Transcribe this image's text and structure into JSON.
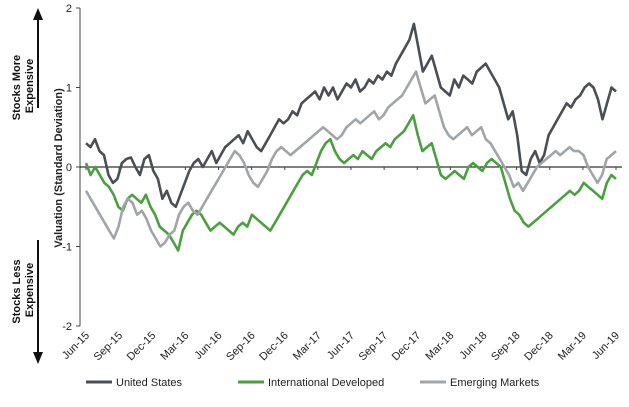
{
  "chart_data": {
    "type": "line",
    "title": "",
    "ylabel": "Valuation (Standard Deviation)",
    "xlabel": "",
    "ylim": [
      -2,
      2
    ],
    "yticks": [
      -2,
      -1,
      0,
      1,
      2
    ],
    "x_tick_labels": [
      "Jun-15",
      "Sep-15",
      "Dec-15",
      "Mar-16",
      "Jun-16",
      "Sep-16",
      "Dec-16",
      "Mar-17",
      "Jun-17",
      "Sep-17",
      "Dec-17",
      "Mar-18",
      "Jun-18",
      "Sep-18",
      "Dec-18",
      "Mar-19",
      "Jun-19"
    ],
    "grid": false,
    "legend": "bottom",
    "side_labels": {
      "top": "Stocks More Expensive",
      "bottom": "Stocks Less Expensive"
    },
    "series": [
      {
        "name": "United States",
        "color": "#4a4f55",
        "values": [
          0.3,
          0.25,
          0.35,
          0.2,
          0.15,
          -0.1,
          -0.2,
          -0.15,
          0.05,
          0.1,
          0.12,
          0.0,
          -0.1,
          0.1,
          0.15,
          -0.05,
          -0.15,
          -0.4,
          -0.3,
          -0.45,
          -0.5,
          -0.35,
          -0.2,
          -0.05,
          0.05,
          0.1,
          0.0,
          0.1,
          0.2,
          0.05,
          0.15,
          0.25,
          0.3,
          0.35,
          0.4,
          0.3,
          0.45,
          0.35,
          0.25,
          0.2,
          0.3,
          0.4,
          0.5,
          0.6,
          0.55,
          0.6,
          0.7,
          0.65,
          0.8,
          0.85,
          0.9,
          0.95,
          0.85,
          1.0,
          0.9,
          1.0,
          0.85,
          0.95,
          1.05,
          1.0,
          1.1,
          0.95,
          1.0,
          1.1,
          1.05,
          1.15,
          1.1,
          1.2,
          1.15,
          1.3,
          1.4,
          1.5,
          1.6,
          1.8,
          1.5,
          1.2,
          1.3,
          1.4,
          1.2,
          1.0,
          0.95,
          0.9,
          1.1,
          1.0,
          1.15,
          1.1,
          1.05,
          1.2,
          1.25,
          1.3,
          1.2,
          1.1,
          1.0,
          0.8,
          0.6,
          0.7,
          0.4,
          -0.05,
          -0.1,
          0.1,
          0.2,
          0.05,
          0.15,
          0.4,
          0.5,
          0.6,
          0.7,
          0.8,
          0.75,
          0.85,
          0.9,
          1.0,
          1.05,
          1.0,
          0.85,
          0.6,
          0.8,
          1.0,
          0.95
        ],
        "values_note": "weekly approx from Jun-15 to Jun-19"
      },
      {
        "name": "International Developed",
        "color": "#4aa03f",
        "values": [
          0.05,
          -0.1,
          0.0,
          -0.1,
          -0.2,
          -0.25,
          -0.35,
          -0.5,
          -0.55,
          -0.4,
          -0.35,
          -0.4,
          -0.45,
          -0.35,
          -0.5,
          -0.6,
          -0.75,
          -0.8,
          -0.85,
          -0.95,
          -1.05,
          -0.8,
          -0.7,
          -0.6,
          -0.55,
          -0.6,
          -0.7,
          -0.8,
          -0.75,
          -0.7,
          -0.75,
          -0.8,
          -0.85,
          -0.75,
          -0.7,
          -0.75,
          -0.6,
          -0.65,
          -0.7,
          -0.75,
          -0.8,
          -0.7,
          -0.6,
          -0.5,
          -0.4,
          -0.3,
          -0.2,
          -0.1,
          -0.05,
          -0.1,
          0.05,
          0.2,
          0.3,
          0.35,
          0.2,
          0.1,
          0.05,
          0.1,
          0.15,
          0.1,
          0.2,
          0.15,
          0.1,
          0.2,
          0.25,
          0.3,
          0.25,
          0.35,
          0.4,
          0.45,
          0.55,
          0.65,
          0.4,
          0.2,
          0.25,
          0.3,
          0.1,
          -0.1,
          -0.15,
          -0.1,
          -0.05,
          -0.1,
          -0.15,
          0.0,
          0.05,
          0.0,
          -0.05,
          0.05,
          0.1,
          0.05,
          0.0,
          -0.2,
          -0.4,
          -0.55,
          -0.6,
          -0.7,
          -0.75,
          -0.7,
          -0.65,
          -0.6,
          -0.55,
          -0.5,
          -0.45,
          -0.4,
          -0.35,
          -0.3,
          -0.35,
          -0.3,
          -0.2,
          -0.25,
          -0.3,
          -0.35,
          -0.4,
          -0.2,
          -0.1,
          -0.15
        ],
        "values_note": "weekly approx from Jun-15 to Jun-19"
      },
      {
        "name": "Emerging Markets",
        "color": "#a0a5aa",
        "values": [
          -0.3,
          -0.4,
          -0.5,
          -0.6,
          -0.7,
          -0.8,
          -0.9,
          -0.75,
          -0.5,
          -0.4,
          -0.45,
          -0.6,
          -0.55,
          -0.65,
          -0.8,
          -0.9,
          -1.0,
          -0.95,
          -0.85,
          -0.8,
          -0.6,
          -0.5,
          -0.45,
          -0.55,
          -0.6,
          -0.5,
          -0.4,
          -0.3,
          -0.2,
          -0.1,
          0.0,
          0.1,
          0.2,
          0.15,
          0.05,
          -0.1,
          -0.2,
          -0.25,
          -0.15,
          -0.05,
          0.1,
          0.2,
          0.25,
          0.2,
          0.15,
          0.2,
          0.25,
          0.3,
          0.35,
          0.4,
          0.45,
          0.5,
          0.45,
          0.4,
          0.35,
          0.4,
          0.5,
          0.55,
          0.6,
          0.55,
          0.6,
          0.65,
          0.7,
          0.6,
          0.65,
          0.75,
          0.8,
          0.85,
          0.9,
          1.0,
          1.1,
          1.2,
          1.0,
          0.8,
          0.85,
          0.9,
          0.7,
          0.5,
          0.4,
          0.35,
          0.4,
          0.45,
          0.5,
          0.4,
          0.45,
          0.5,
          0.35,
          0.3,
          0.2,
          0.1,
          0.0,
          -0.1,
          -0.25,
          -0.2,
          -0.3,
          -0.2,
          -0.1,
          0.0,
          0.05,
          0.1,
          0.15,
          0.2,
          0.15,
          0.2,
          0.25,
          0.2,
          0.2,
          0.15,
          0.0,
          -0.1,
          -0.2,
          -0.1,
          0.1,
          0.15,
          0.2
        ],
        "values_note": "weekly approx from Jun-15 to Jun-19"
      }
    ]
  }
}
